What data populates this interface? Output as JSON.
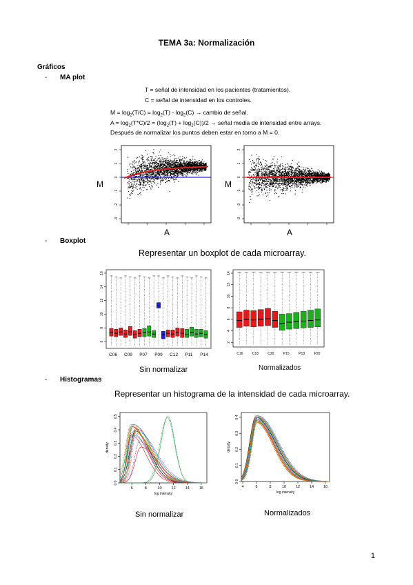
{
  "title": "TEMA 3a: Normalización",
  "heading": "Gráficos",
  "sections": [
    {
      "dash": "-",
      "label": "MA plot"
    },
    {
      "dash": "-",
      "label": "Boxplot"
    },
    {
      "dash": "-",
      "label": "Histogramas"
    }
  ],
  "ma": {
    "line1": "T = señal de intensidad en los pacientes (tratamientos).",
    "line2": "C = señal de intensidad en los controles.",
    "m_formula_a": "M = log",
    "m_formula_b": "(T/C) = log",
    "m_formula_c": "(T) - log",
    "m_formula_d": "(C) → cambio de señal.",
    "a_formula_a": "A = log",
    "a_formula_b": "(T*C)/2 = (log",
    "a_formula_c": "(T) + log",
    "a_formula_d": "(C))/2 → señal media de intensidad entre arrays.",
    "sub2": "2",
    "line5": "Después de normalizar los puntos deben estar en torno a M = 0.",
    "axis_m": "M",
    "axis_a": "A",
    "y_ticks": [
      "2",
      "1",
      "0",
      "-1",
      "-2",
      "-3"
    ],
    "left_smooth": [
      [
        0.0,
        -0.05
      ],
      [
        0.1,
        0.15
      ],
      [
        0.22,
        0.35
      ],
      [
        0.35,
        0.5
      ],
      [
        0.5,
        0.6
      ],
      [
        0.65,
        0.67
      ],
      [
        0.8,
        0.72
      ],
      [
        1.0,
        0.78
      ]
    ],
    "right_smooth": [
      [
        0.0,
        0.0
      ],
      [
        0.5,
        0.0
      ],
      [
        1.0,
        0.0
      ]
    ],
    "colors": {
      "smooth": "#e02020",
      "reference": "#2020e0",
      "points": "#000000"
    }
  },
  "boxplot": {
    "heading": "Representar un boxplot de cada microarray.",
    "left_caption": "Sin normalizar",
    "right_caption": "Normalizados",
    "left_y_ticks": [
      "16",
      "14",
      "12",
      "10",
      "8",
      "6"
    ],
    "left_x_labels": [
      "C06",
      "C09",
      "P07",
      "P09",
      "C12",
      "P11",
      "P14"
    ],
    "right_y_ticks": [
      "14",
      "12",
      "10",
      "8",
      "6",
      "4",
      "2"
    ],
    "right_x_labels": [
      "C16",
      "C18",
      "C20",
      "P15",
      "P18",
      "P20"
    ],
    "left_boxes": [
      {
        "c": "r",
        "q1": 6.8,
        "med": 7.3,
        "q3": 7.9
      },
      {
        "c": "r",
        "q1": 6.7,
        "med": 7.2,
        "q3": 7.8
      },
      {
        "c": "r",
        "q1": 6.9,
        "med": 7.4,
        "q3": 8.0
      },
      {
        "c": "r",
        "q1": 6.6,
        "med": 7.1,
        "q3": 7.7
      },
      {
        "c": "r",
        "q1": 6.9,
        "med": 7.4,
        "q3": 8.2
      },
      {
        "c": "r",
        "q1": 6.5,
        "med": 7.0,
        "q3": 7.6
      },
      {
        "c": "r",
        "q1": 6.7,
        "med": 7.2,
        "q3": 7.8
      },
      {
        "c": "g",
        "q1": 6.7,
        "med": 7.3,
        "q3": 7.9
      },
      {
        "c": "g",
        "q1": 6.8,
        "med": 7.4,
        "q3": 8.3
      },
      {
        "c": "g",
        "q1": 6.6,
        "med": 7.1,
        "q3": 7.6
      },
      {
        "c": "b",
        "q1": 10.9,
        "med": 11.2,
        "q3": 11.7
      },
      {
        "c": "b",
        "q1": 6.4,
        "med": 7.0,
        "q3": 7.5
      },
      {
        "c": "r",
        "q1": 6.7,
        "med": 7.2,
        "q3": 7.7
      },
      {
        "c": "r",
        "q1": 6.6,
        "med": 7.1,
        "q3": 7.7
      },
      {
        "c": "r",
        "q1": 6.8,
        "med": 7.3,
        "q3": 8.0
      },
      {
        "c": "r",
        "q1": 6.6,
        "med": 7.2,
        "q3": 7.9
      },
      {
        "c": "g",
        "q1": 6.6,
        "med": 7.0,
        "q3": 7.8
      },
      {
        "c": "g",
        "q1": 6.8,
        "med": 7.3,
        "q3": 8.1
      },
      {
        "c": "g",
        "q1": 6.6,
        "med": 7.1,
        "q3": 7.8
      },
      {
        "c": "g",
        "q1": 6.7,
        "med": 7.2,
        "q3": 7.8
      },
      {
        "c": "g",
        "q1": 6.5,
        "med": 7.0,
        "q3": 7.6
      }
    ],
    "right_boxes": [
      {
        "c": "r",
        "q1": 4.6,
        "med": 5.8,
        "q3": 7.3
      },
      {
        "c": "r",
        "q1": 4.8,
        "med": 6.0,
        "q3": 7.6
      },
      {
        "c": "r",
        "q1": 4.7,
        "med": 5.9,
        "q3": 7.5
      },
      {
        "c": "r",
        "q1": 4.8,
        "med": 6.0,
        "q3": 7.7
      },
      {
        "c": "r",
        "q1": 4.9,
        "med": 6.1,
        "q3": 7.9
      },
      {
        "c": "r",
        "q1": 4.6,
        "med": 5.8,
        "q3": 7.4
      },
      {
        "c": "g",
        "q1": 4.1,
        "med": 5.3,
        "q3": 6.9
      },
      {
        "c": "g",
        "q1": 4.3,
        "med": 5.5,
        "q3": 7.0
      },
      {
        "c": "g",
        "q1": 4.4,
        "med": 5.6,
        "q3": 7.2
      },
      {
        "c": "g",
        "q1": 4.5,
        "med": 5.7,
        "q3": 7.4
      },
      {
        "c": "g",
        "q1": 4.6,
        "med": 5.8,
        "q3": 7.6
      },
      {
        "c": "g",
        "q1": 4.7,
        "med": 5.9,
        "q3": 7.8
      }
    ],
    "colors": {
      "r": "#e31a1c",
      "g": "#1fae1f",
      "b": "#1f1fd8"
    }
  },
  "histogram": {
    "heading": "Representar un histograma de la intensidad de cada microarray.",
    "left_caption": "Sin normalizar",
    "right_caption": "Normalizados",
    "ylabel": "density",
    "xlabel": "log intensity",
    "left_x_ticks": [
      "6",
      "8",
      "10",
      "12",
      "14",
      "16"
    ],
    "left_y_ticks": [
      "0.0",
      "0.1",
      "0.2",
      "0.3",
      "0.4",
      "0.5"
    ],
    "right_x_ticks": [
      "4",
      "6",
      "8",
      "10",
      "12",
      "14",
      "16"
    ],
    "right_y_ticks": [
      "0.0",
      "0.1",
      "0.2",
      "0.3",
      "0.4"
    ]
  },
  "page_number": "1"
}
